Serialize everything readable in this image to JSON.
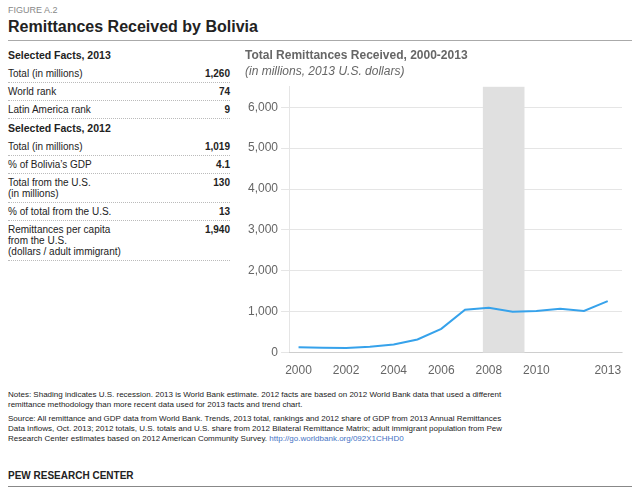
{
  "chart_data": {
    "type": "line",
    "title": "Total Remittances Received, 2000-2013",
    "subtitle": "(in millions, 2013 U.S. dollars)",
    "x": [
      2000,
      2001,
      2002,
      2003,
      2004,
      2005,
      2006,
      2007,
      2008,
      2009,
      2010,
      2011,
      2012,
      2013
    ],
    "values": [
      130,
      120,
      115,
      145,
      200,
      320,
      580,
      1050,
      1097,
      1000,
      1020,
      1070,
      1019,
      1260
    ],
    "xlim": [
      1999.6,
      2013.6
    ],
    "xticks": [
      2000,
      2002,
      2004,
      2006,
      2008,
      2010,
      2013
    ],
    "ylim": [
      0,
      6500
    ],
    "yticks": [
      0,
      {
        "value": 1000,
        "label": "1,000"
      },
      {
        "value": 2000,
        "label": "2,000"
      },
      {
        "value": 3000,
        "label": "3,000"
      },
      {
        "value": 4000,
        "label": "4,000"
      },
      {
        "value": 5000,
        "label": "5,000"
      },
      {
        "value": 6000,
        "label": "6,000"
      }
    ],
    "grid": true,
    "shading": {
      "start": 2007.75,
      "end": 2009.5,
      "color": "#E0E0E0"
    },
    "annotations": {
      "figure_label": "FIGURE A.2",
      "page_title": "Remittances Received by Bolivia",
      "facts": [
        {
          "title": "Selected Facts, 2013",
          "rows": [
            [
              "Total (in millions)",
              "1,260"
            ],
            [
              "World rank",
              "74"
            ],
            [
              "Latin America rank",
              "9"
            ]
          ]
        },
        {
          "title": "Selected Facts, 2012",
          "rows": [
            [
              "Total (in millions)",
              "1,019"
            ],
            [
              "% of Bolivia’s GDP",
              "4.1"
            ],
            [
              "Total from the U.S.\n(in millions)",
              "130"
            ],
            [
              "% of total from the U.S.",
              "13"
            ],
            [
              "Remittances per capita\nfrom the U.S.\n(dollars / adult immigrant)",
              "1,940"
            ]
          ]
        }
      ],
      "notes": [
        "Notes: Shading indicates U.S. recession. 2013 is World Bank estimate. 2012 facts are based on 2012 World Bank data that used a different",
        "remittance methodology than more recent data used for 2013 facts and trend chart."
      ],
      "source": [
        "Source: All remittance and GDP data from World Bank. Trends, 2013 total, rankings and 2012 share of GDP from 2013 Annual Remittances",
        "Data Inflows, Oct. 2013; 2012 totals, U.S. totals and U.S. share from 2012 Bilateral Remittance Matrix; adult immigrant population from Pew",
        "Research Center estimates based on 2012 American Community Survey.  "
      ],
      "source_url": "http://go.worldbank.org/092X1CHHD0",
      "credit": "PEW RESEARCH CENTER"
    }
  }
}
